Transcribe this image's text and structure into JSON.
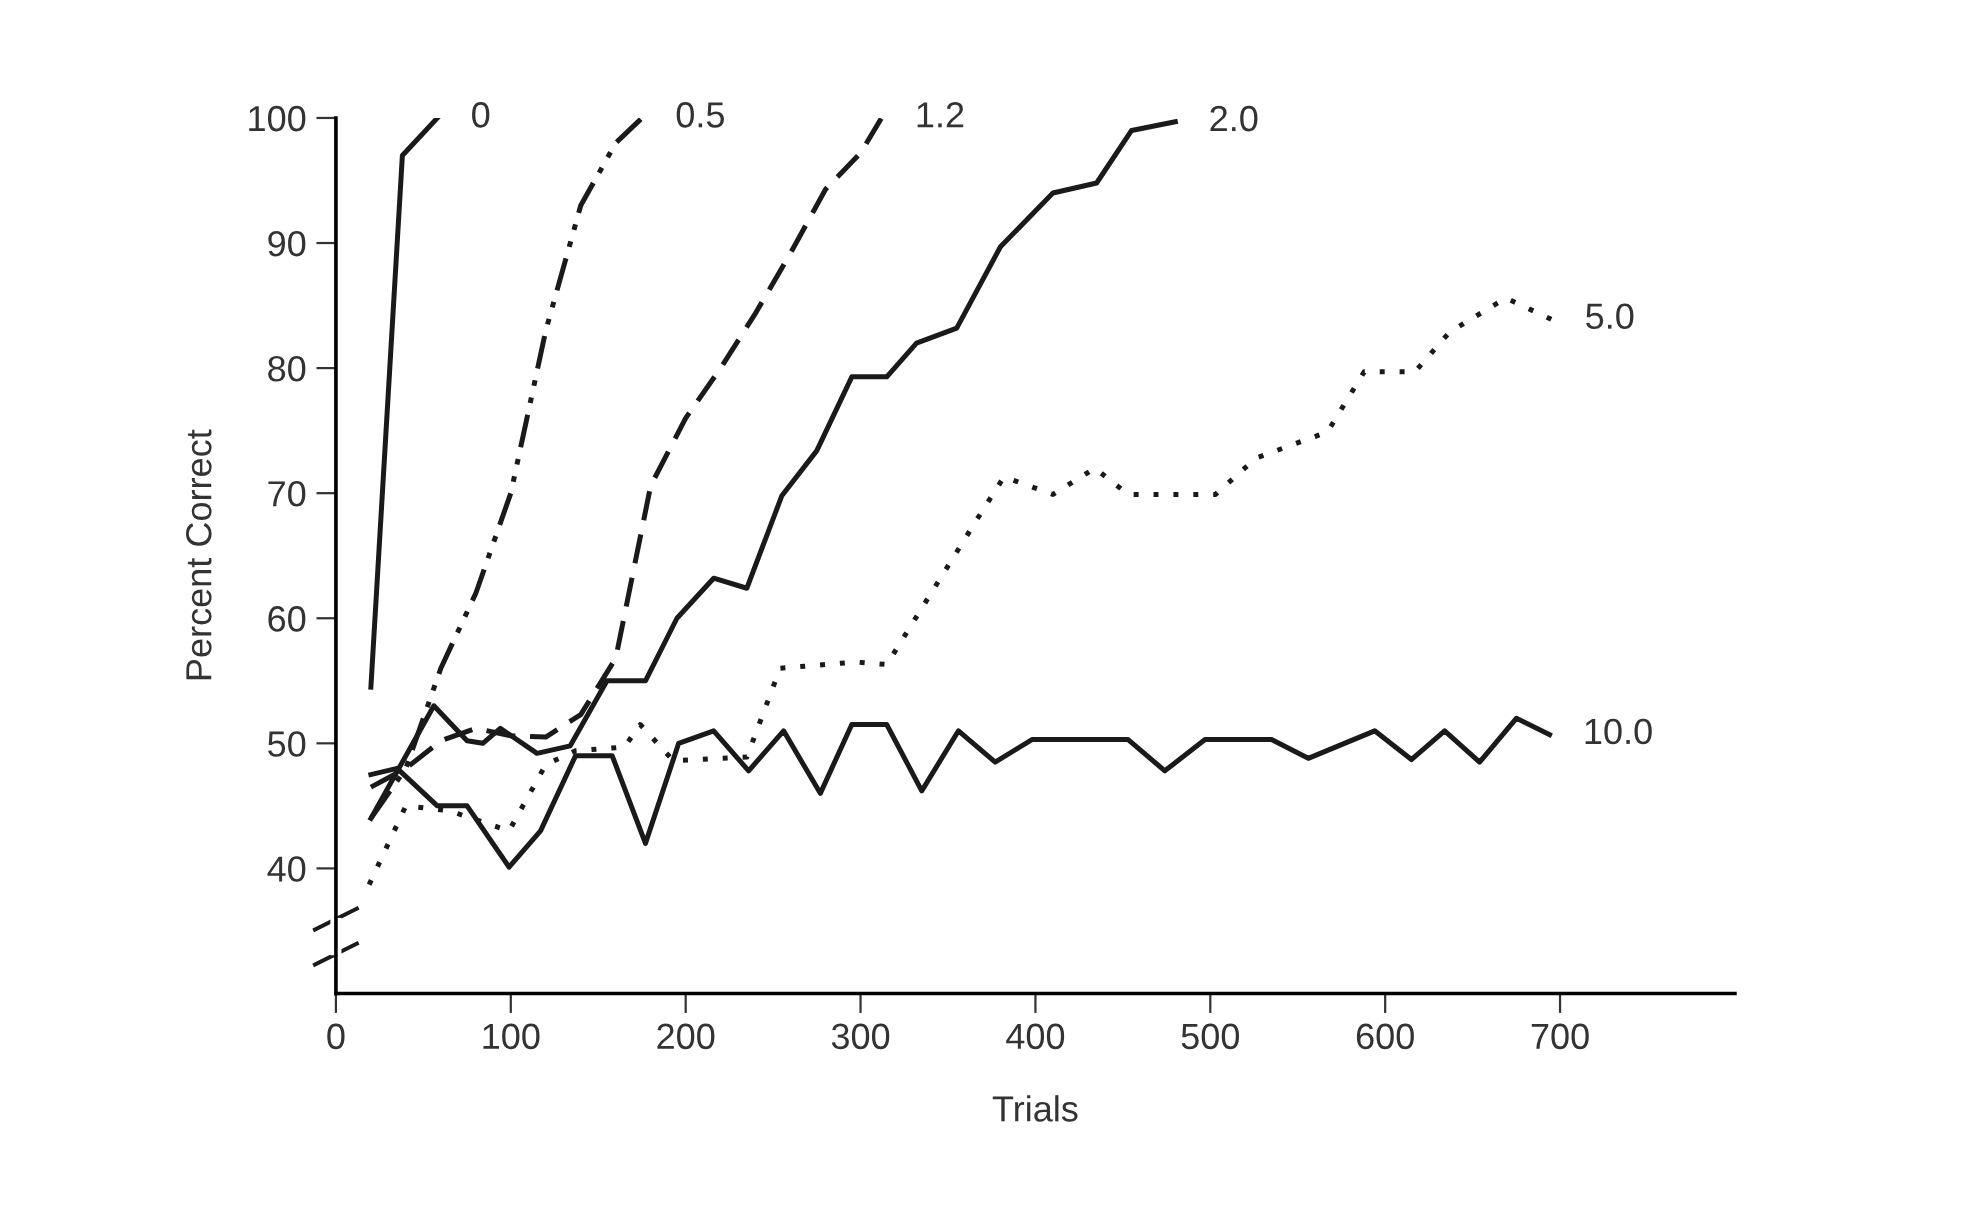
{
  "chart_data": {
    "type": "line",
    "xlabel": "Trials",
    "ylabel": "Percent Correct",
    "xlim": [
      0,
      800
    ],
    "ylim": [
      30,
      100
    ],
    "xticks": [
      0,
      100,
      200,
      300,
      400,
      500,
      600,
      700
    ],
    "yticks": [
      40,
      50,
      60,
      70,
      80,
      90,
      100
    ],
    "grid": false,
    "legend": false,
    "marker": "none",
    "series": [
      {
        "name": "0",
        "color": "#1a1a1a",
        "line_style": "solid",
        "x": [
          20,
          38,
          58
        ],
        "values": [
          54.5,
          97,
          100
        ]
      },
      {
        "name": "0.5",
        "color": "#1a1a1a",
        "line_style": "dashdot",
        "x": [
          20,
          40,
          60,
          80,
          100,
          120,
          140,
          160,
          175
        ],
        "values": [
          44,
          48,
          56,
          62,
          70,
          83,
          93,
          98,
          100
        ]
      },
      {
        "name": "1.2",
        "color": "#1a1a1a",
        "line_style": "dashed",
        "x": [
          20,
          40,
          60,
          80,
          100,
          120,
          140,
          160,
          180,
          200,
          220,
          240,
          260,
          280,
          300,
          312
        ],
        "values": [
          46.5,
          48,
          50.2,
          51.2,
          50.6,
          50.5,
          52.3,
          56.8,
          70.6,
          76,
          80,
          84.4,
          89.2,
          94.3,
          97.2,
          100
        ]
      },
      {
        "name": "2.0",
        "color": "#1a1a1a",
        "line_style": "solid",
        "x": [
          20,
          56,
          75,
          84,
          94,
          115,
          134,
          155,
          177,
          195,
          216,
          235,
          255,
          275,
          295,
          315,
          332,
          355,
          380,
          410,
          435,
          455,
          480
        ],
        "values": [
          44,
          53,
          50.2,
          50,
          51.2,
          49.2,
          49.8,
          55,
          55,
          60,
          63.2,
          62.4,
          69.8,
          73.4,
          79.3,
          79.3,
          82,
          83.2,
          89.7,
          94,
          94.8,
          99,
          99.7
        ]
      },
      {
        "name": "5.0",
        "color": "#1a1a1a",
        "line_style": "dotted",
        "x": [
          19,
          40,
          65,
          99,
          120,
          137,
          165,
          174,
          193,
          235,
          254,
          297,
          315,
          367,
          382,
          410,
          434,
          453,
          503,
          526,
          567,
          588,
          617,
          637,
          669,
          695
        ],
        "values": [
          38.7,
          45,
          44.6,
          43,
          48.3,
          49.4,
          49.7,
          51.5,
          48.6,
          48.9,
          56,
          56.5,
          56.3,
          68,
          71.3,
          69.9,
          72,
          69.9,
          69.9,
          72.8,
          74.9,
          79.7,
          79.7,
          82.9,
          85.6,
          83.9
        ]
      },
      {
        "name": "10.0",
        "color": "#1a1a1a",
        "line_style": "solid",
        "x": [
          20,
          35,
          58,
          75,
          99,
          117,
          137,
          158,
          177,
          196,
          216,
          236,
          256,
          277,
          295,
          315,
          335,
          356,
          377,
          398,
          453,
          474,
          497,
          535,
          556,
          594,
          615,
          634,
          654,
          675,
          694
        ],
        "values": [
          47.5,
          48,
          45,
          45,
          40.1,
          43,
          49,
          49,
          42,
          50,
          51,
          47.8,
          51,
          46,
          51.5,
          51.5,
          46.2,
          51,
          48.5,
          50.3,
          50.3,
          47.8,
          50.3,
          50.3,
          48.8,
          51,
          48.7,
          51,
          48.5,
          52,
          50.7
        ]
      }
    ]
  }
}
